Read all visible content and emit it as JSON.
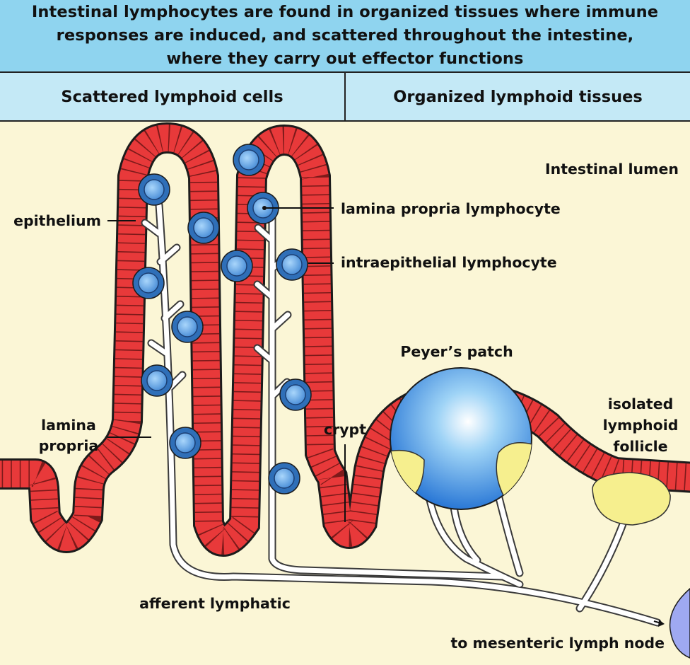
{
  "header": {
    "title": "Intestinal lymphocytes are found in organized tissues where immune\nresponses are induced, and scattered throughout the intestine,\nwhere they carry out effector functions"
  },
  "columns": {
    "left": "Scattered lymphoid cells",
    "right": "Organized lymphoid tissues"
  },
  "labels": {
    "intestinal_lumen": "Intestinal lumen",
    "lamina_propria_lymphocyte": "lamina propria lymphocyte",
    "epithelium": "epithelium",
    "intraepithelial_lymphocyte": "intraepithelial lymphocyte",
    "peyers_patch": "Peyer’s patch",
    "isolated_1": "isolated",
    "isolated_2": "lymphoid",
    "isolated_3": "follicle",
    "lamina_1": "lamina",
    "lamina_2": "propria",
    "crypt": "crypt",
    "afferent_lymphatic": "afferent lymphatic",
    "mesenteric": "to mesenteric lymph node"
  },
  "colors": {
    "title_band": "#8fd4ef",
    "header_band": "#c4e9f6",
    "tissue": "#fbf6d6",
    "epithelium": "#e8393a",
    "lymphocyte": "#4a8fd8",
    "follicle": "#f6ef8e"
  }
}
